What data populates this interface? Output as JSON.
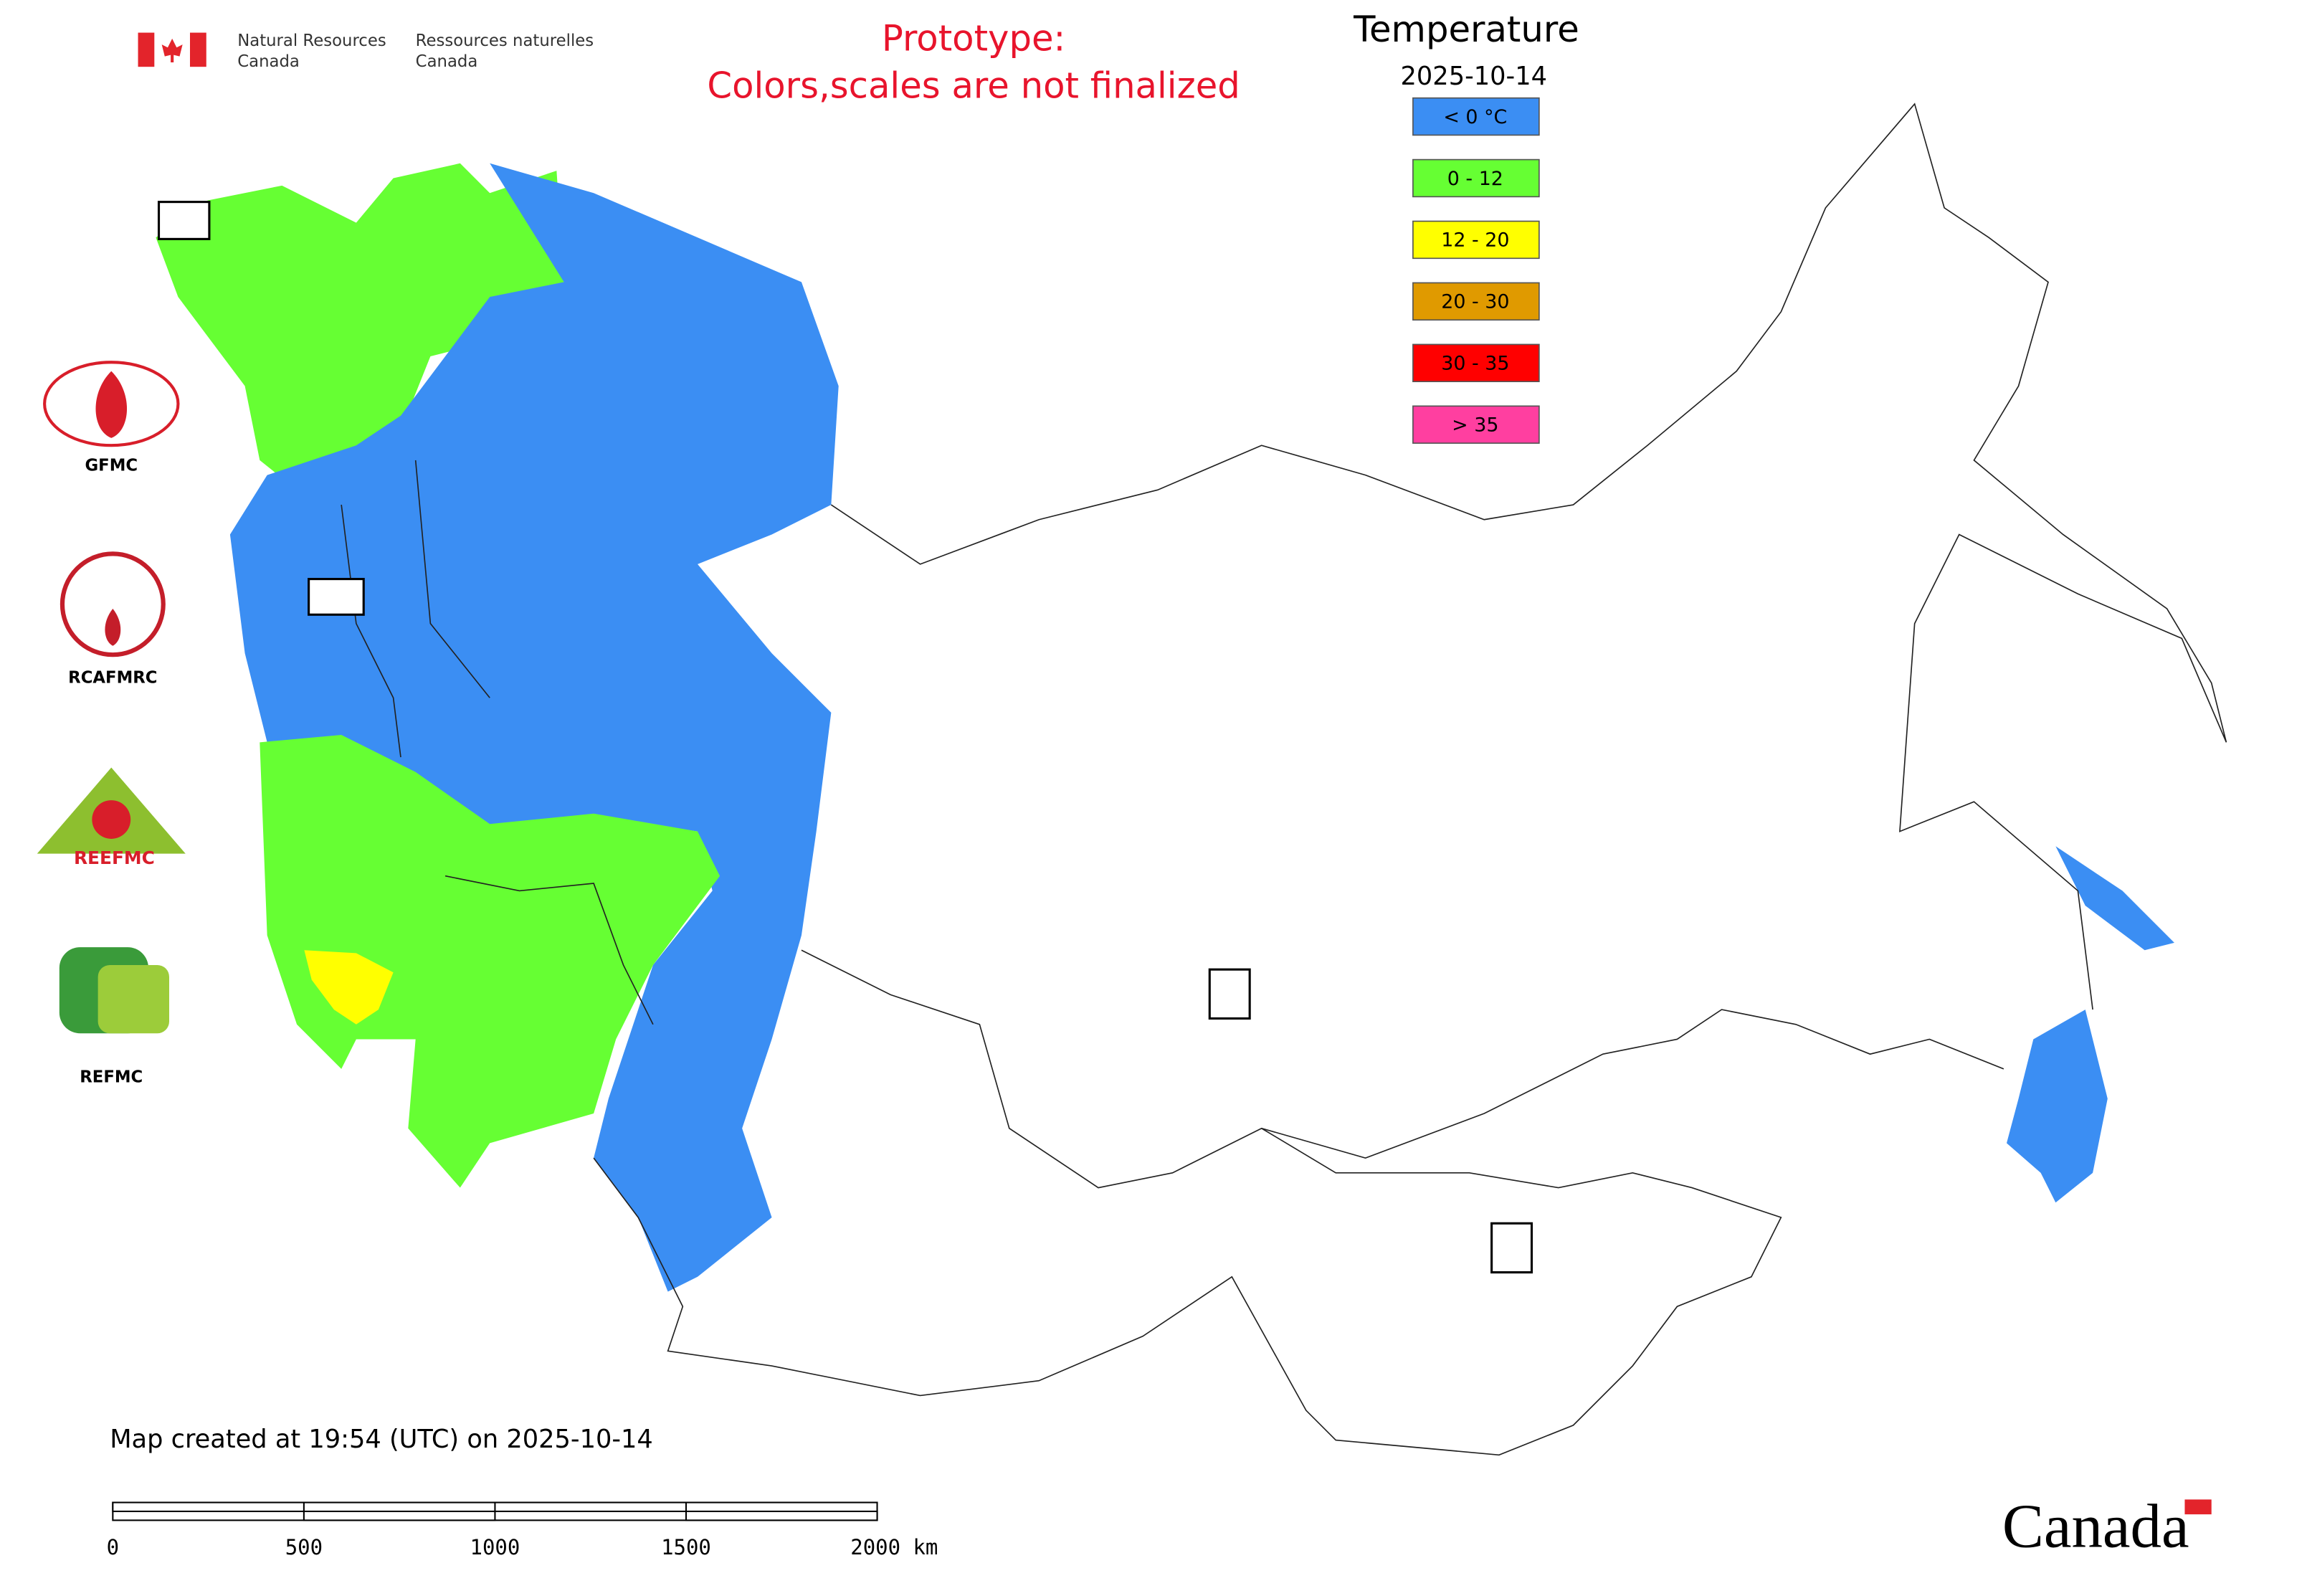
{
  "header": {
    "org_en": [
      "Natural Resources",
      "Canada"
    ],
    "org_fr": [
      "Ressources naturelles",
      "Canada"
    ]
  },
  "notice": [
    "Prototype:",
    "Colors,scales are not finalized"
  ],
  "legend": {
    "title": "Temperature",
    "date": "2025-10-14",
    "items": [
      {
        "label": "< 0 °C",
        "color": "#3b8ef3"
      },
      {
        "label": "0 - 12",
        "color": "#66ff33"
      },
      {
        "label": "12 - 20",
        "color": "#ffff00"
      },
      {
        "label": "20 - 30",
        "color": "#e09a00"
      },
      {
        "label": "30 - 35",
        "color": "#ff0000"
      },
      {
        "label": "> 35",
        "color": "#ff3fa0"
      }
    ]
  },
  "logos": [
    "GFMC",
    "RCAFMRC",
    "REEFMC",
    "REFMC"
  ],
  "footer": {
    "created": "Map created at 19:54 (UTC) on 2025-10-14",
    "wordmark": "Canada"
  },
  "scale_bar": {
    "labels": [
      "0",
      "500",
      "1000",
      "1500",
      "2000 km"
    ]
  }
}
